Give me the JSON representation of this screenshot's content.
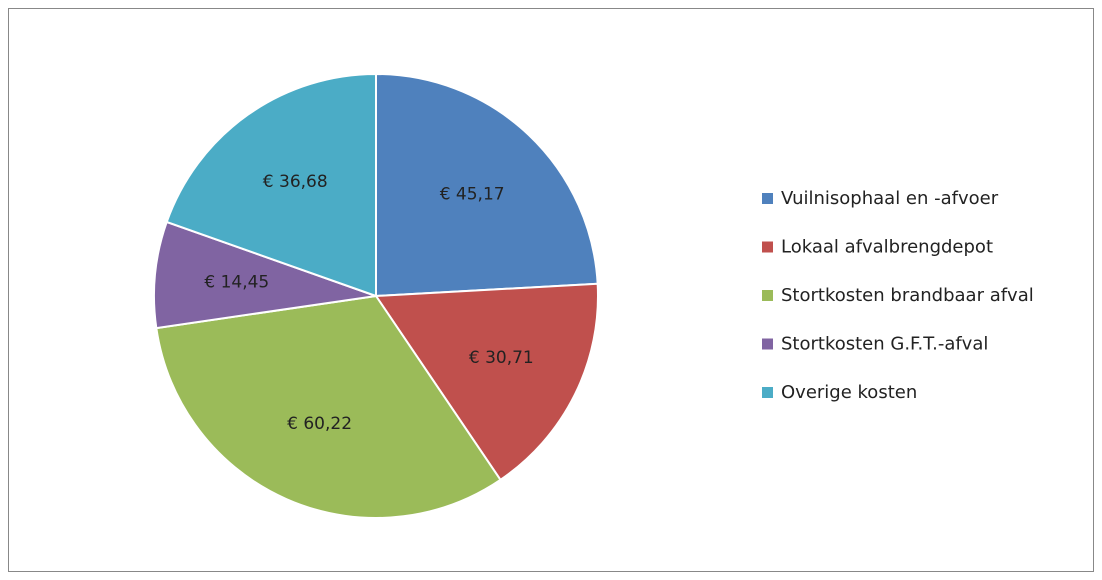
{
  "chart_data": {
    "type": "pie",
    "categories": [
      "Vuilnisophaal en -afvoer",
      "Lokaal afvalbrengdepot",
      "Stortkosten brandbaar afval",
      "Stortkosten G.F.T.-afval",
      "Overige kosten"
    ],
    "values": [
      45.17,
      30.71,
      60.22,
      14.45,
      36.68
    ],
    "value_labels": [
      "€ 45,17",
      "€ 30,71",
      "€ 60,22",
      "€ 14,45",
      "€ 36,68"
    ],
    "colors": [
      "#4f81bd",
      "#c0504d",
      "#9bbb59",
      "#8064a2",
      "#4bacc6"
    ],
    "legend": "right"
  }
}
